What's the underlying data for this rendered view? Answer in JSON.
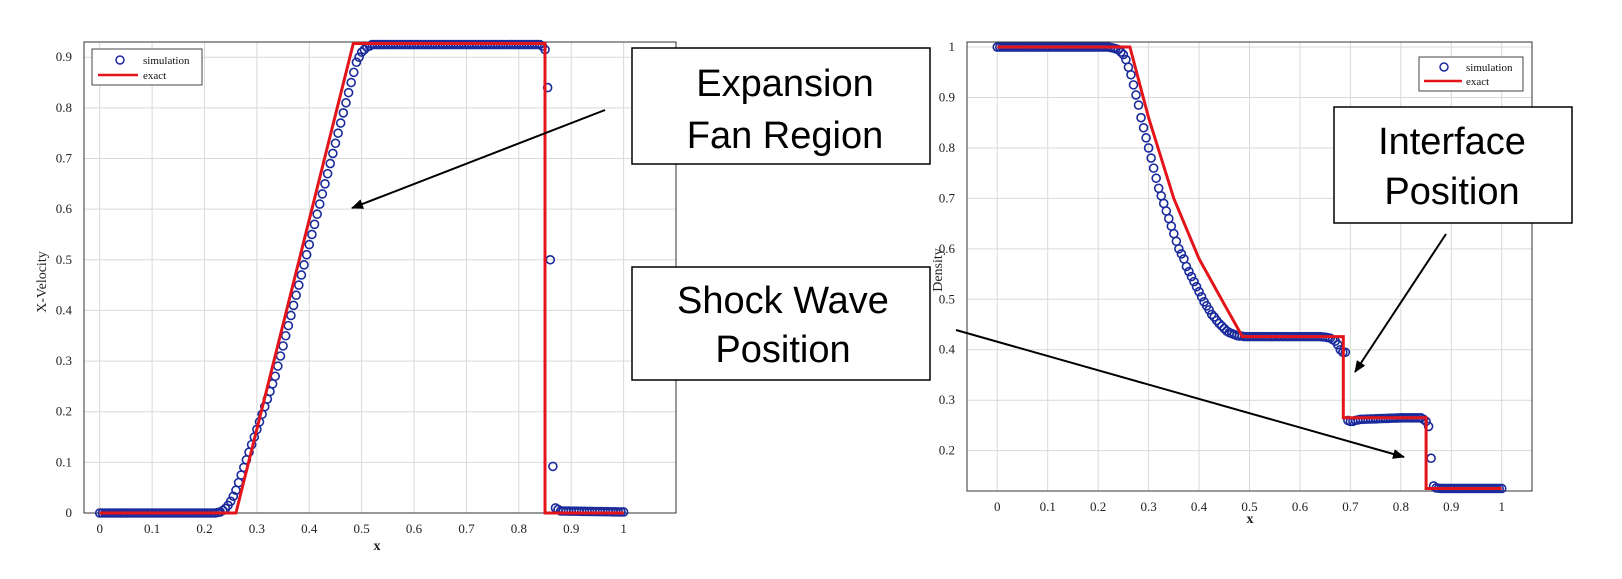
{
  "chart_data": [
    {
      "type": "line",
      "xlabel": "x",
      "ylabel": "X-Velocity",
      "xlim": [
        -0.03,
        1.1
      ],
      "ylim": [
        0,
        0.93
      ],
      "xticks": [
        "0",
        "0.1",
        "0.2",
        "0.3",
        "0.4",
        "0.5",
        "0.6",
        "0.7",
        "0.8",
        "0.9",
        "1"
      ],
      "yticks": [
        "0",
        "0.1",
        "0.2",
        "0.3",
        "0.4",
        "0.5",
        "0.6",
        "0.7",
        "0.8",
        "0.9"
      ],
      "grid": true,
      "legend": {
        "position": "top-left",
        "entries": [
          "simulation",
          "exact"
        ]
      },
      "series": [
        {
          "name": "exact",
          "style": "line",
          "color": "#e4141b",
          "x": [
            0,
            0.26,
            0.484,
            0.85,
            0.85,
            1
          ],
          "y": [
            0,
            0,
            0.927,
            0.927,
            0,
            0
          ]
        },
        {
          "name": "simulation",
          "style": "marker",
          "color": "#1a2a9b",
          "x": [
            0,
            0.22,
            0.23,
            0.235,
            0.24,
            0.245,
            0.25,
            0.255,
            0.26,
            0.265,
            0.27,
            0.275,
            0.28,
            0.285,
            0.29,
            0.295,
            0.3,
            0.305,
            0.31,
            0.315,
            0.32,
            0.325,
            0.33,
            0.335,
            0.34,
            0.345,
            0.35,
            0.355,
            0.36,
            0.365,
            0.37,
            0.375,
            0.38,
            0.385,
            0.39,
            0.395,
            0.4,
            0.405,
            0.41,
            0.415,
            0.42,
            0.425,
            0.43,
            0.435,
            0.44,
            0.445,
            0.45,
            0.455,
            0.46,
            0.465,
            0.47,
            0.475,
            0.48,
            0.485,
            0.49,
            0.495,
            0.5,
            0.505,
            0.51,
            0.515,
            0.52,
            0.53,
            0.84,
            0.845,
            0.85,
            0.855,
            0.86,
            0.865,
            0.87,
            0.88,
            1
          ],
          "y": [
            0,
            0,
            0.002,
            0.005,
            0.009,
            0.015,
            0.023,
            0.033,
            0.045,
            0.06,
            0.075,
            0.09,
            0.105,
            0.12,
            0.135,
            0.15,
            0.165,
            0.18,
            0.195,
            0.21,
            0.225,
            0.24,
            0.255,
            0.27,
            0.29,
            0.31,
            0.33,
            0.35,
            0.37,
            0.39,
            0.41,
            0.43,
            0.45,
            0.47,
            0.49,
            0.51,
            0.53,
            0.55,
            0.57,
            0.59,
            0.61,
            0.63,
            0.65,
            0.67,
            0.69,
            0.71,
            0.73,
            0.75,
            0.77,
            0.79,
            0.81,
            0.83,
            0.85,
            0.87,
            0.89,
            0.9,
            0.91,
            0.915,
            0.92,
            0.922,
            0.925,
            0.925,
            0.925,
            0.922,
            0.915,
            0.84,
            0.5,
            0.092,
            0.01,
            0.004,
            0.002
          ]
        }
      ]
    },
    {
      "type": "line",
      "xlabel": "x",
      "ylabel": "Density",
      "xlim": [
        -0.06,
        1.06
      ],
      "ylim": [
        0.12,
        1.01
      ],
      "xticks": [
        "0",
        "0.1",
        "0.2",
        "0.3",
        "0.4",
        "0.5",
        "0.6",
        "0.7",
        "0.8",
        "0.9",
        "1"
      ],
      "yticks": [
        "0.2",
        "0.3",
        "0.4",
        "0.5",
        "0.6",
        "0.7",
        "0.8",
        "0.9",
        "1"
      ],
      "grid": true,
      "legend": {
        "position": "top-right",
        "entries": [
          "simulation",
          "exact"
        ]
      },
      "series": [
        {
          "name": "exact",
          "style": "line",
          "color": "#e4141b",
          "x": [
            0,
            0.263,
            0.3,
            0.35,
            0.4,
            0.45,
            0.486,
            0.686,
            0.686,
            0.85,
            0.85,
            1
          ],
          "y": [
            1,
            1,
            0.86,
            0.7,
            0.58,
            0.49,
            0.426,
            0.426,
            0.265,
            0.265,
            0.125,
            0.125
          ]
        },
        {
          "name": "simulation",
          "style": "marker",
          "color": "#1a2a9b",
          "x": [
            0,
            0.22,
            0.23,
            0.24,
            0.245,
            0.25,
            0.255,
            0.26,
            0.265,
            0.27,
            0.275,
            0.28,
            0.285,
            0.29,
            0.295,
            0.3,
            0.305,
            0.31,
            0.315,
            0.32,
            0.325,
            0.33,
            0.335,
            0.34,
            0.345,
            0.35,
            0.355,
            0.36,
            0.365,
            0.37,
            0.375,
            0.38,
            0.385,
            0.39,
            0.395,
            0.4,
            0.405,
            0.41,
            0.415,
            0.42,
            0.425,
            0.43,
            0.435,
            0.44,
            0.445,
            0.45,
            0.455,
            0.46,
            0.465,
            0.47,
            0.475,
            0.48,
            0.485,
            0.49,
            0.495,
            0.5,
            0.505,
            0.51,
            0.52,
            0.54,
            0.6,
            0.64,
            0.65,
            0.66,
            0.665,
            0.67,
            0.675,
            0.68,
            0.685,
            0.69,
            0.695,
            0.7,
            0.705,
            0.71,
            0.72,
            0.8,
            0.83,
            0.84,
            0.845,
            0.85,
            0.855,
            0.86,
            0.865,
            0.87,
            0.88,
            1
          ],
          "y": [
            1,
            1,
            0.998,
            0.995,
            0.99,
            0.985,
            0.975,
            0.96,
            0.945,
            0.925,
            0.905,
            0.885,
            0.86,
            0.84,
            0.82,
            0.8,
            0.78,
            0.76,
            0.74,
            0.72,
            0.705,
            0.69,
            0.675,
            0.66,
            0.645,
            0.63,
            0.615,
            0.6,
            0.59,
            0.58,
            0.565,
            0.555,
            0.545,
            0.535,
            0.525,
            0.515,
            0.505,
            0.495,
            0.487,
            0.479,
            0.47,
            0.465,
            0.458,
            0.452,
            0.447,
            0.442,
            0.437,
            0.434,
            0.432,
            0.43,
            0.428,
            0.427,
            0.427,
            0.426,
            0.426,
            0.426,
            0.426,
            0.426,
            0.426,
            0.426,
            0.426,
            0.426,
            0.425,
            0.423,
            0.42,
            0.417,
            0.41,
            0.4,
            0.395,
            0.395,
            0.26,
            0.258,
            0.258,
            0.26,
            0.262,
            0.265,
            0.265,
            0.265,
            0.262,
            0.258,
            0.248,
            0.185,
            0.13,
            0.126,
            0.125,
            0.125
          ]
        }
      ]
    }
  ],
  "annotations": {
    "expansion": {
      "line1": "Expansion",
      "line2": "Fan Region"
    },
    "shock": {
      "line1": "Shock Wave",
      "line2": "Position"
    },
    "interface": {
      "line1": "Interface",
      "line2": "Position"
    }
  },
  "colors": {
    "simulation_marker": "#1a2a9b",
    "exact_line": "#e4141b"
  }
}
